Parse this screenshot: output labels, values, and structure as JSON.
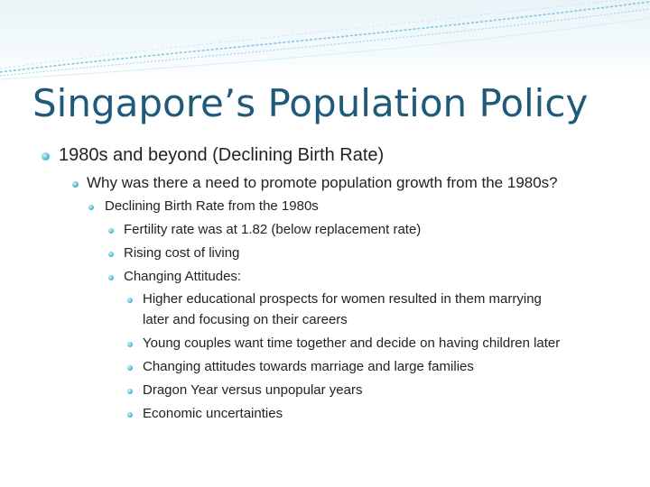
{
  "slide": {
    "title": "Singapore’s Population Policy",
    "bullets": [
      {
        "level": 1,
        "text": "1980s and beyond (Declining Birth Rate)"
      },
      {
        "level": 2,
        "text": "Why was there a need to promote population growth from the 1980s?"
      },
      {
        "level": 3,
        "text": "Declining Birth Rate from the 1980s"
      },
      {
        "level": 4,
        "text": "Fertility rate was at 1.82 (below replacement rate)"
      },
      {
        "level": 4,
        "text": "Rising cost of living"
      },
      {
        "level": 4,
        "text": "Changing Attitudes:"
      },
      {
        "level": 5,
        "text": "Higher educational prospects for women resulted in them marrying"
      },
      {
        "level": 5,
        "text": "later and focusing on their careers",
        "continuation": true
      },
      {
        "level": 5,
        "text": "Young couples want time together and decide on having children later"
      },
      {
        "level": 5,
        "text": "Changing attitudes towards marriage and large families"
      },
      {
        "level": 5,
        "text": "Dragon Year versus unpopular years"
      },
      {
        "level": 5,
        "text": "Economic uncertainties"
      }
    ]
  },
  "theme": {
    "title_color": "#1f5a7a",
    "accent": "#3fa9c9",
    "bullet_color": "#2a93b3"
  }
}
